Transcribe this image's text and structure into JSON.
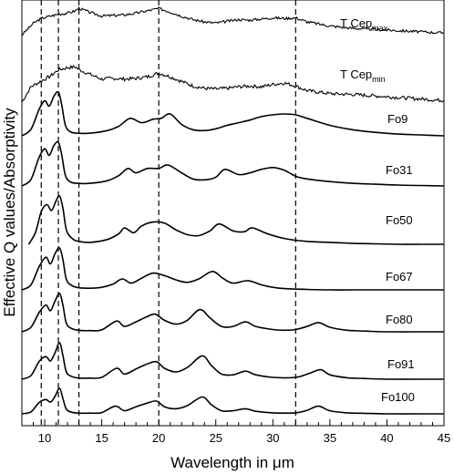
{
  "chart_data": {
    "type": "line",
    "title": "",
    "xlabel": "Wavelength in μm",
    "ylabel": "Effective Q values/Absorptivity",
    "xlim": [
      8,
      45
    ],
    "x_ticks": [
      10,
      15,
      20,
      25,
      30,
      35,
      40,
      45
    ],
    "y_ticks_shown": false,
    "grid": false,
    "legend": "none",
    "reference_lines_x": [
      9.7,
      11.2,
      13.0,
      20.0,
      32.0
    ],
    "series": [
      {
        "name": "T Cep",
        "sub": "max",
        "noisy": true,
        "seed": 3,
        "x": [
          8,
          9,
          9.7,
          10.5,
          11.2,
          12,
          12.7,
          13,
          14,
          15,
          16,
          17,
          18,
          19,
          20,
          21,
          22,
          23,
          24,
          25,
          26,
          27,
          28,
          29,
          30,
          31,
          32,
          33,
          35,
          37,
          39,
          41,
          43,
          45
        ],
        "y": [
          0.05,
          0.45,
          0.62,
          0.7,
          0.76,
          0.8,
          0.88,
          0.97,
          0.82,
          0.7,
          0.72,
          0.74,
          0.8,
          0.88,
          0.96,
          0.84,
          0.7,
          0.58,
          0.5,
          0.46,
          0.52,
          0.58,
          0.56,
          0.6,
          0.64,
          0.62,
          0.64,
          0.5,
          0.36,
          0.28,
          0.24,
          0.2,
          0.16,
          0.12
        ]
      },
      {
        "name": "T Cep",
        "sub": "min",
        "noisy": true,
        "seed": 7,
        "x": [
          8,
          8.8,
          9.7,
          10.5,
          11.2,
          12,
          12.7,
          13,
          14,
          15,
          16,
          17,
          18,
          19,
          20,
          21,
          22,
          23,
          24,
          25,
          26,
          27,
          28,
          29,
          30,
          31,
          32,
          33,
          35,
          37,
          39,
          41,
          43,
          45
        ],
        "y": [
          0.0,
          0.4,
          0.55,
          0.68,
          0.84,
          0.9,
          0.92,
          0.85,
          0.72,
          0.6,
          0.62,
          0.6,
          0.62,
          0.66,
          0.76,
          0.66,
          0.54,
          0.42,
          0.36,
          0.34,
          0.36,
          0.4,
          0.42,
          0.4,
          0.46,
          0.5,
          0.42,
          0.3,
          0.22,
          0.2,
          0.16,
          0.12,
          0.08,
          0.04
        ]
      },
      {
        "name": "Fo9",
        "noisy": false,
        "x": [
          8,
          8.8,
          9.5,
          10,
          10.4,
          10.8,
          11.2,
          11.5,
          11.8,
          12.2,
          12.8,
          14,
          15.5,
          16.5,
          17.5,
          18.5,
          19.5,
          20.2,
          21,
          22,
          23,
          24,
          25,
          26,
          27,
          28,
          29,
          30,
          31,
          32,
          33,
          35,
          37,
          39,
          41,
          43,
          45
        ],
        "y": [
          0.0,
          0.15,
          0.6,
          0.8,
          0.68,
          0.9,
          1.0,
          0.7,
          0.25,
          0.1,
          0.06,
          0.06,
          0.12,
          0.22,
          0.4,
          0.3,
          0.38,
          0.4,
          0.5,
          0.26,
          0.14,
          0.12,
          0.16,
          0.24,
          0.3,
          0.36,
          0.44,
          0.48,
          0.5,
          0.48,
          0.4,
          0.24,
          0.14,
          0.08,
          0.04,
          0.02,
          0.0
        ]
      },
      {
        "name": "Fo31",
        "noisy": false,
        "x": [
          8,
          8.8,
          9.5,
          10,
          10.4,
          10.8,
          11.2,
          11.5,
          11.8,
          12.2,
          12.8,
          14,
          15.5,
          16.5,
          17.3,
          18,
          19,
          20,
          20.8,
          22,
          23,
          24,
          25,
          25.8,
          27,
          28,
          29,
          30,
          31,
          32,
          33,
          35,
          37,
          39,
          41,
          43,
          45
        ],
        "y": [
          0.0,
          0.15,
          0.65,
          0.85,
          0.7,
          0.92,
          1.0,
          0.7,
          0.25,
          0.1,
          0.06,
          0.06,
          0.12,
          0.24,
          0.4,
          0.3,
          0.4,
          0.4,
          0.48,
          0.3,
          0.16,
          0.14,
          0.2,
          0.38,
          0.26,
          0.3,
          0.38,
          0.42,
          0.36,
          0.22,
          0.16,
          0.1,
          0.06,
          0.04,
          0.02,
          0.01,
          0.0
        ]
      },
      {
        "name": "Fo50",
        "x_start": 8.6,
        "noisy": false,
        "x": [
          8.6,
          9.2,
          9.7,
          10.2,
          10.6,
          11,
          11.3,
          11.6,
          11.9,
          12.4,
          13,
          14,
          15.5,
          16.5,
          17,
          17.8,
          18.5,
          19.5,
          20.5,
          21.5,
          22.5,
          23.5,
          24.5,
          25.3,
          26.5,
          27.5,
          28.2,
          29.5,
          31,
          33,
          35,
          37,
          39,
          41,
          43,
          45
        ],
        "y": [
          0.0,
          0.25,
          0.68,
          0.82,
          0.7,
          0.9,
          1.0,
          0.75,
          0.3,
          0.12,
          0.06,
          0.04,
          0.1,
          0.22,
          0.34,
          0.24,
          0.38,
          0.46,
          0.44,
          0.3,
          0.2,
          0.18,
          0.28,
          0.42,
          0.28,
          0.26,
          0.34,
          0.22,
          0.12,
          0.06,
          0.04,
          0.02,
          0.01,
          0.0,
          0.0,
          0.0
        ]
      },
      {
        "name": "Fo67",
        "noisy": false,
        "x": [
          8,
          8.8,
          9.5,
          10.1,
          10.5,
          10.9,
          11.3,
          11.6,
          11.9,
          12.4,
          13,
          14,
          15,
          16,
          16.8,
          17.6,
          18.5,
          19.5,
          20.5,
          21.5,
          22.5,
          23.5,
          24.7,
          25.6,
          26.5,
          27.8,
          29,
          30,
          31,
          33,
          35,
          37,
          39,
          41,
          43,
          45
        ],
        "y": [
          0.0,
          0.12,
          0.55,
          0.78,
          0.62,
          0.86,
          1.0,
          0.72,
          0.25,
          0.1,
          0.05,
          0.04,
          0.06,
          0.14,
          0.26,
          0.16,
          0.28,
          0.4,
          0.34,
          0.24,
          0.18,
          0.26,
          0.44,
          0.28,
          0.16,
          0.22,
          0.12,
          0.06,
          0.03,
          0.01,
          0.0,
          0.0,
          0.0,
          0.0,
          0.0,
          0.0
        ]
      },
      {
        "name": "Fo80",
        "noisy": false,
        "x": [
          8,
          8.8,
          9.5,
          10.1,
          10.5,
          10.9,
          11.3,
          11.6,
          11.9,
          12.4,
          13,
          14,
          15,
          16.3,
          17,
          18,
          19,
          19.7,
          20.5,
          21.5,
          22.5,
          23.6,
          24.5,
          25.5,
          26.5,
          27.6,
          28.5,
          30,
          31,
          32,
          33,
          34,
          35,
          36.5,
          38,
          40,
          43,
          45
        ],
        "y": [
          0.0,
          0.12,
          0.5,
          0.7,
          0.55,
          0.8,
          1.0,
          0.7,
          0.22,
          0.08,
          0.04,
          0.03,
          0.05,
          0.28,
          0.14,
          0.26,
          0.4,
          0.46,
          0.3,
          0.2,
          0.3,
          0.58,
          0.36,
          0.14,
          0.14,
          0.26,
          0.14,
          0.06,
          0.04,
          0.06,
          0.14,
          0.24,
          0.12,
          0.04,
          0.02,
          0.0,
          0.0,
          0.0
        ]
      },
      {
        "name": "Fo91",
        "noisy": false,
        "x": [
          8,
          8.8,
          9.5,
          10.1,
          10.5,
          10.9,
          11.3,
          11.6,
          11.9,
          12.4,
          13,
          14,
          15,
          16.3,
          17,
          18,
          19,
          19.8,
          20.5,
          21.5,
          22.5,
          23.8,
          24.6,
          25.5,
          26.5,
          27.6,
          28.5,
          30,
          32,
          33.2,
          34.2,
          35,
          36.5,
          38,
          40,
          43,
          45
        ],
        "y": [
          0.0,
          0.1,
          0.48,
          0.62,
          0.5,
          0.72,
          1.0,
          0.65,
          0.2,
          0.07,
          0.03,
          0.03,
          0.05,
          0.3,
          0.14,
          0.28,
          0.42,
          0.48,
          0.3,
          0.2,
          0.32,
          0.64,
          0.38,
          0.14,
          0.12,
          0.22,
          0.12,
          0.05,
          0.05,
          0.16,
          0.26,
          0.12,
          0.04,
          0.02,
          0.0,
          0.0,
          0.0
        ]
      },
      {
        "name": "Fo100",
        "noisy": false,
        "x": [
          8,
          8.8,
          9.5,
          10.1,
          10.5,
          10.9,
          11.3,
          11.6,
          11.9,
          12.4,
          13,
          14,
          15,
          16.2,
          17,
          18,
          19,
          19.8,
          20.5,
          21.5,
          22.5,
          23.8,
          24.6,
          25.5,
          26.5,
          27.6,
          28.5,
          30,
          32,
          33,
          34,
          35,
          36.5,
          38,
          40,
          43,
          45
        ],
        "y": [
          0.0,
          0.08,
          0.44,
          0.56,
          0.46,
          0.68,
          1.0,
          0.6,
          0.18,
          0.06,
          0.03,
          0.03,
          0.05,
          0.3,
          0.12,
          0.28,
          0.42,
          0.5,
          0.28,
          0.2,
          0.32,
          0.66,
          0.36,
          0.12,
          0.12,
          0.2,
          0.1,
          0.04,
          0.04,
          0.14,
          0.3,
          0.12,
          0.04,
          0.02,
          0.0,
          0.0,
          0.0
        ]
      }
    ]
  }
}
